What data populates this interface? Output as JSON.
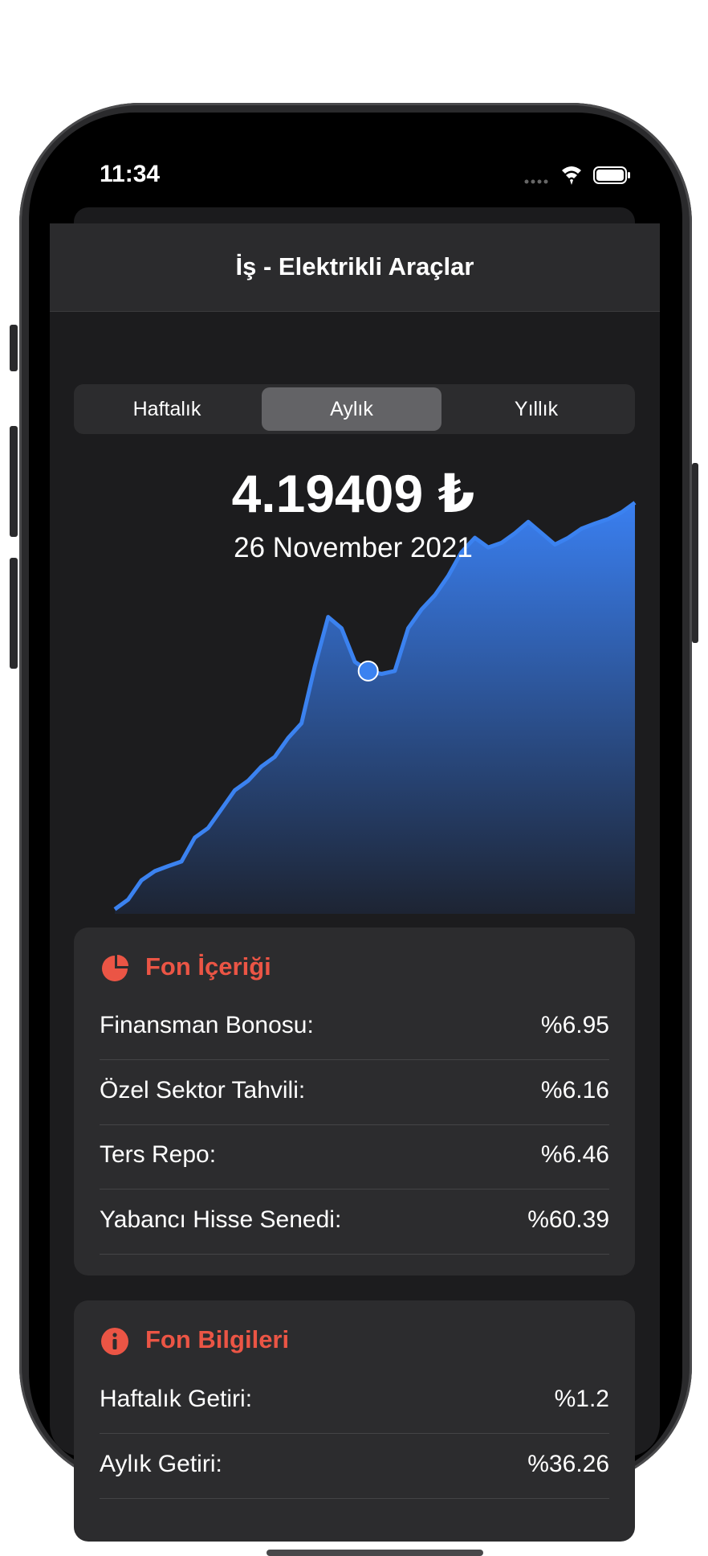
{
  "status_bar": {
    "time": "11:34"
  },
  "nav": {
    "title": "İş - Elektrikli Araçlar"
  },
  "segments": {
    "options": [
      "Haftalık",
      "Aylık",
      "Yıllık"
    ],
    "selected": 1
  },
  "chart_data": {
    "type": "area",
    "selected_label": "4.19409 ₺",
    "selected_date": "26 November 2021",
    "selected_index": 19,
    "values": [
      1.1,
      3.4,
      8.0,
      10.2,
      11.4,
      12.5,
      18.2,
      20.5,
      25,
      29.5,
      31.8,
      35.2,
      37.5,
      42,
      45.5,
      59.1,
      70.9,
      68.2,
      60.2,
      58,
      57.3,
      58,
      68.2,
      72.7,
      76.1,
      80.7,
      86.4,
      89.8,
      87.5,
      88.6,
      90.9,
      93.6,
      90.9,
      88.2,
      89.8,
      92,
      93.2,
      94.3,
      95.9,
      98.2
    ],
    "ylim": [
      0,
      100
    ],
    "color": "#3b82f0"
  },
  "cards": [
    {
      "title": "Fon İçeriği",
      "rows": [
        [
          "Finansman Bonosu:",
          "%6.95"
        ],
        [
          "Özel Sektor Tahvili:",
          "%6.16"
        ],
        [
          "Ters Repo:",
          "%6.46"
        ],
        [
          "Yabancı Hisse Senedi:",
          "%60.39"
        ]
      ]
    },
    {
      "title": "Fon Bilgileri",
      "rows": [
        [
          "Haftalık Getiri:",
          "%1.2"
        ],
        [
          "Aylık Getiri:",
          "%36.26"
        ]
      ]
    }
  ]
}
